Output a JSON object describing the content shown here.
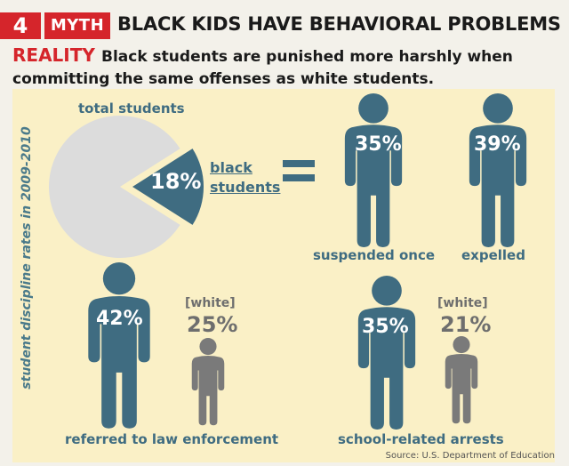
{
  "header": {
    "number": "4",
    "myth_label": "MYTH",
    "myth_title": "BLACK KIDS HAVE BEHAVIORAL PROBLEMS",
    "reality_label": "REALITY",
    "reality_text": "Black students are punished more harshly when committing the same offenses as white students."
  },
  "side_label": "student discipline rates in 2009-2010",
  "pie": {
    "total_label": "total students",
    "slice_pct": "18%",
    "slice_value": 0.18,
    "slice_label_line1": "black",
    "slice_label_line2": "students",
    "colors": {
      "total": "#dcdcdc",
      "slice": "#3f6c81"
    }
  },
  "stats": [
    {
      "pct": "35%",
      "label": "suspended once"
    },
    {
      "pct": "39%",
      "label": "expelled"
    }
  ],
  "comparisons": [
    {
      "black_pct": "42%",
      "white_tag": "[white]",
      "white_pct": "25%",
      "label": "referred to law enforcement"
    },
    {
      "black_pct": "35%",
      "white_tag": "[white]",
      "white_pct": "21%",
      "label": "school-related arrests"
    }
  ],
  "source": "Source: U.S. Department of Education",
  "colors": {
    "accent_red": "#d5252b",
    "figure_blue": "#3f6c81",
    "figure_gray": "#7a7a7a",
    "panel": "#faf0c6"
  }
}
